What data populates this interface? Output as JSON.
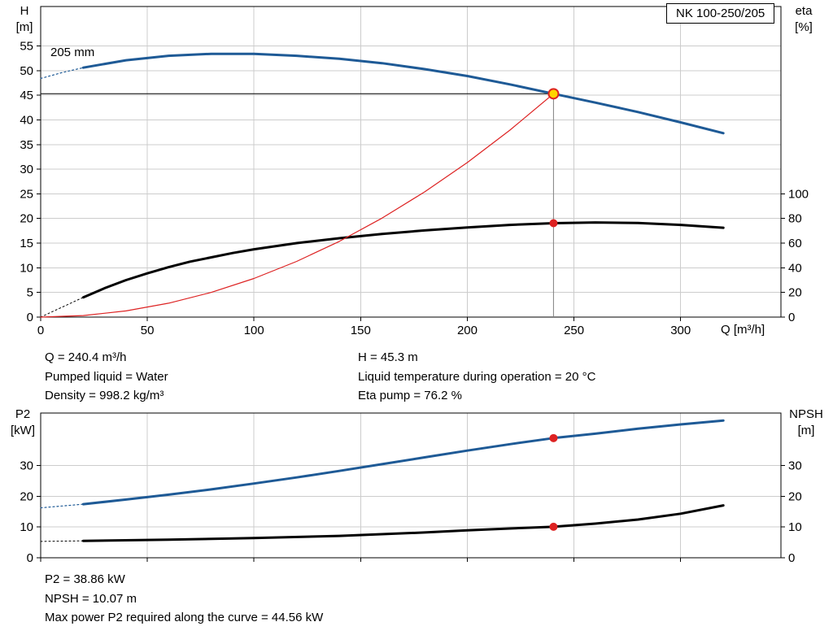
{
  "pump_model": "NK 100-250/205",
  "colors": {
    "curve_blue": "#1e5a96",
    "curve_black": "#000000",
    "curve_red": "#dd2222",
    "marker_yellow": "#ffd400",
    "marker_red": "#dd2222",
    "grid": "#cccccc",
    "frame": "#000000",
    "flow_guide": "#808080"
  },
  "top_chart": {
    "impeller_label": "205 mm",
    "left_axis_title": [
      "H",
      "[m]"
    ],
    "right_axis_title": [
      "eta",
      "[%]"
    ],
    "x_axis_title": "Q [m³/h]"
  },
  "bottom_chart": {
    "left_axis_title": [
      "P2",
      "[kW]"
    ],
    "right_axis_title": [
      "NPSH",
      "[m]"
    ]
  },
  "operating_info": {
    "left_column": [
      "Q = 240.4 m³/h",
      "Pumped liquid = Water",
      "Density = 998.2 kg/m³"
    ],
    "right_column": [
      "H = 45.3 m",
      "Liquid temperature during operation = 20 °C",
      "Eta pump = 76.2 %"
    ]
  },
  "result_info": [
    "P2 = 38.86 kW",
    "NPSH = 10.07 m",
    "Max power P2 required along the curve = 44.56 kW"
  ],
  "chart_data": [
    {
      "id": "qh",
      "type": "line",
      "title": "NK 100-250/205",
      "xlabel": "Q [m³/h]",
      "grid": true,
      "xlim": [
        0,
        347
      ],
      "x_ticks": [
        0,
        50,
        100,
        150,
        200,
        250,
        300
      ],
      "left_axis": {
        "label": "H [m]",
        "lim": [
          0,
          63
        ],
        "ticks": [
          0,
          5,
          10,
          15,
          20,
          25,
          30,
          35,
          40,
          45,
          50,
          55
        ]
      },
      "right_axis": {
        "label": "eta [%]",
        "lim": [
          0,
          252
        ],
        "ticks": [
          0,
          20,
          40,
          60,
          80,
          100
        ]
      },
      "duty_point": {
        "q": 240.4,
        "h": 45.3,
        "eta": 76.2
      },
      "series": [
        {
          "name": "h-curve-extension",
          "axis": "left",
          "color": "#1e5a96",
          "width": 1.2,
          "dash": "2,3",
          "points": [
            [
              0,
              48.4
            ],
            [
              10,
              49.6
            ],
            [
              20,
              50.6
            ]
          ]
        },
        {
          "name": "h-curve",
          "axis": "left",
          "color": "#1e5a96",
          "width": 3,
          "points": [
            [
              20,
              50.6
            ],
            [
              40,
              52.1
            ],
            [
              60,
              53.0
            ],
            [
              80,
              53.4
            ],
            [
              100,
              53.4
            ],
            [
              120,
              53.0
            ],
            [
              140,
              52.4
            ],
            [
              160,
              51.5
            ],
            [
              180,
              50.3
            ],
            [
              200,
              48.9
            ],
            [
              220,
              47.2
            ],
            [
              240.4,
              45.3
            ],
            [
              260,
              43.5
            ],
            [
              280,
              41.6
            ],
            [
              300,
              39.5
            ],
            [
              320,
              37.3
            ]
          ]
        },
        {
          "name": "eta-curve-extension",
          "axis": "right",
          "color": "#000000",
          "width": 1,
          "dash": "2,3",
          "points": [
            [
              0,
              0
            ],
            [
              20,
              16
            ]
          ]
        },
        {
          "name": "eta-curve",
          "axis": "right",
          "color": "#000000",
          "width": 3,
          "points": [
            [
              20,
              16
            ],
            [
              30,
              23.5
            ],
            [
              40,
              30
            ],
            [
              50,
              35.5
            ],
            [
              60,
              40.5
            ],
            [
              70,
              45
            ],
            [
              80,
              48.5
            ],
            [
              90,
              52
            ],
            [
              100,
              55
            ],
            [
              120,
              60
            ],
            [
              140,
              64
            ],
            [
              160,
              67.5
            ],
            [
              180,
              70.3
            ],
            [
              200,
              72.7
            ],
            [
              220,
              74.8
            ],
            [
              240.4,
              76.2
            ],
            [
              260,
              76.8
            ],
            [
              280,
              76.3
            ],
            [
              300,
              74.8
            ],
            [
              320,
              72.5
            ]
          ]
        },
        {
          "name": "system-curve",
          "axis": "left",
          "color": "#dd2222",
          "width": 1.2,
          "points": [
            [
              0,
              0
            ],
            [
              20,
              0.31
            ],
            [
              40,
              1.25
            ],
            [
              60,
              2.82
            ],
            [
              80,
              5.02
            ],
            [
              100,
              7.84
            ],
            [
              120,
              11.29
            ],
            [
              140,
              15.36
            ],
            [
              160,
              20.07
            ],
            [
              180,
              25.4
            ],
            [
              200,
              31.35
            ],
            [
              220,
              37.94
            ],
            [
              240.4,
              45.3
            ]
          ]
        }
      ],
      "guide_lines": [
        {
          "name": "head-guide-line",
          "axis": "left",
          "color": "#000000",
          "width": 1,
          "points": [
            [
              0,
              45.3
            ],
            [
              240.4,
              45.3
            ]
          ]
        },
        {
          "name": "flow-guide-line",
          "axis": "left",
          "color": "#808080",
          "width": 1,
          "points": [
            [
              240.4,
              45.3
            ],
            [
              240.4,
              0
            ]
          ]
        }
      ],
      "markers": [
        {
          "name": "duty-point-marker",
          "axis": "left",
          "x": 240.4,
          "y": 45.3,
          "r": 6,
          "fill": "#ffd400",
          "stroke": "#dd2222",
          "stroke_width": 2
        },
        {
          "name": "eta-point-marker",
          "axis": "right",
          "x": 240.4,
          "y": 76.2,
          "r": 5,
          "fill": "#dd2222"
        }
      ]
    },
    {
      "id": "p2npsh",
      "type": "line",
      "title": "",
      "xlabel": "",
      "grid": true,
      "x_tick_labels": false,
      "xlim": [
        0,
        347
      ],
      "x_ticks": [
        0,
        50,
        100,
        150,
        200,
        250,
        300
      ],
      "left_axis": {
        "label": "P2 [kW]",
        "lim": [
          0,
          47
        ],
        "ticks": [
          0,
          10,
          20,
          30
        ]
      },
      "right_axis": {
        "label": "NPSH [m]",
        "lim": [
          0,
          47
        ],
        "ticks": [
          0,
          10,
          20,
          30
        ]
      },
      "duty_point": {
        "q": 240.4,
        "p2": 38.86,
        "npsh": 10.07
      },
      "series": [
        {
          "name": "p2-curve-extension",
          "axis": "left",
          "color": "#1e5a96",
          "width": 1.2,
          "dash": "2,3",
          "points": [
            [
              0,
              16.2
            ],
            [
              20,
              17.4
            ]
          ]
        },
        {
          "name": "p2-curve",
          "axis": "left",
          "color": "#1e5a96",
          "width": 3,
          "points": [
            [
              20,
              17.4
            ],
            [
              40,
              18.9
            ],
            [
              60,
              20.5
            ],
            [
              80,
              22.2
            ],
            [
              100,
              24.1
            ],
            [
              120,
              26.1
            ],
            [
              140,
              28.2
            ],
            [
              160,
              30.4
            ],
            [
              180,
              32.6
            ],
            [
              200,
              34.8
            ],
            [
              220,
              36.9
            ],
            [
              240.4,
              38.86
            ],
            [
              260,
              40.3
            ],
            [
              280,
              41.9
            ],
            [
              300,
              43.3
            ],
            [
              320,
              44.56
            ]
          ]
        },
        {
          "name": "npsh-curve-extension",
          "axis": "right",
          "color": "#000000",
          "width": 1,
          "dash": "2,3",
          "points": [
            [
              0,
              5.3
            ],
            [
              20,
              5.5
            ]
          ]
        },
        {
          "name": "npsh-curve",
          "axis": "right",
          "color": "#000000",
          "width": 3,
          "points": [
            [
              20,
              5.5
            ],
            [
              60,
              5.9
            ],
            [
              100,
              6.4
            ],
            [
              140,
              7.1
            ],
            [
              180,
              8.2
            ],
            [
              200,
              8.9
            ],
            [
              220,
              9.5
            ],
            [
              240.4,
              10.07
            ],
            [
              260,
              11.1
            ],
            [
              280,
              12.4
            ],
            [
              300,
              14.3
            ],
            [
              320,
              17.0
            ]
          ]
        }
      ],
      "guide_lines": [],
      "markers": [
        {
          "name": "p2-point-marker",
          "axis": "left",
          "x": 240.4,
          "y": 38.86,
          "r": 5,
          "fill": "#dd2222"
        },
        {
          "name": "npsh-point-marker",
          "axis": "right",
          "x": 240.4,
          "y": 10.07,
          "r": 5,
          "fill": "#dd2222"
        }
      ]
    }
  ]
}
